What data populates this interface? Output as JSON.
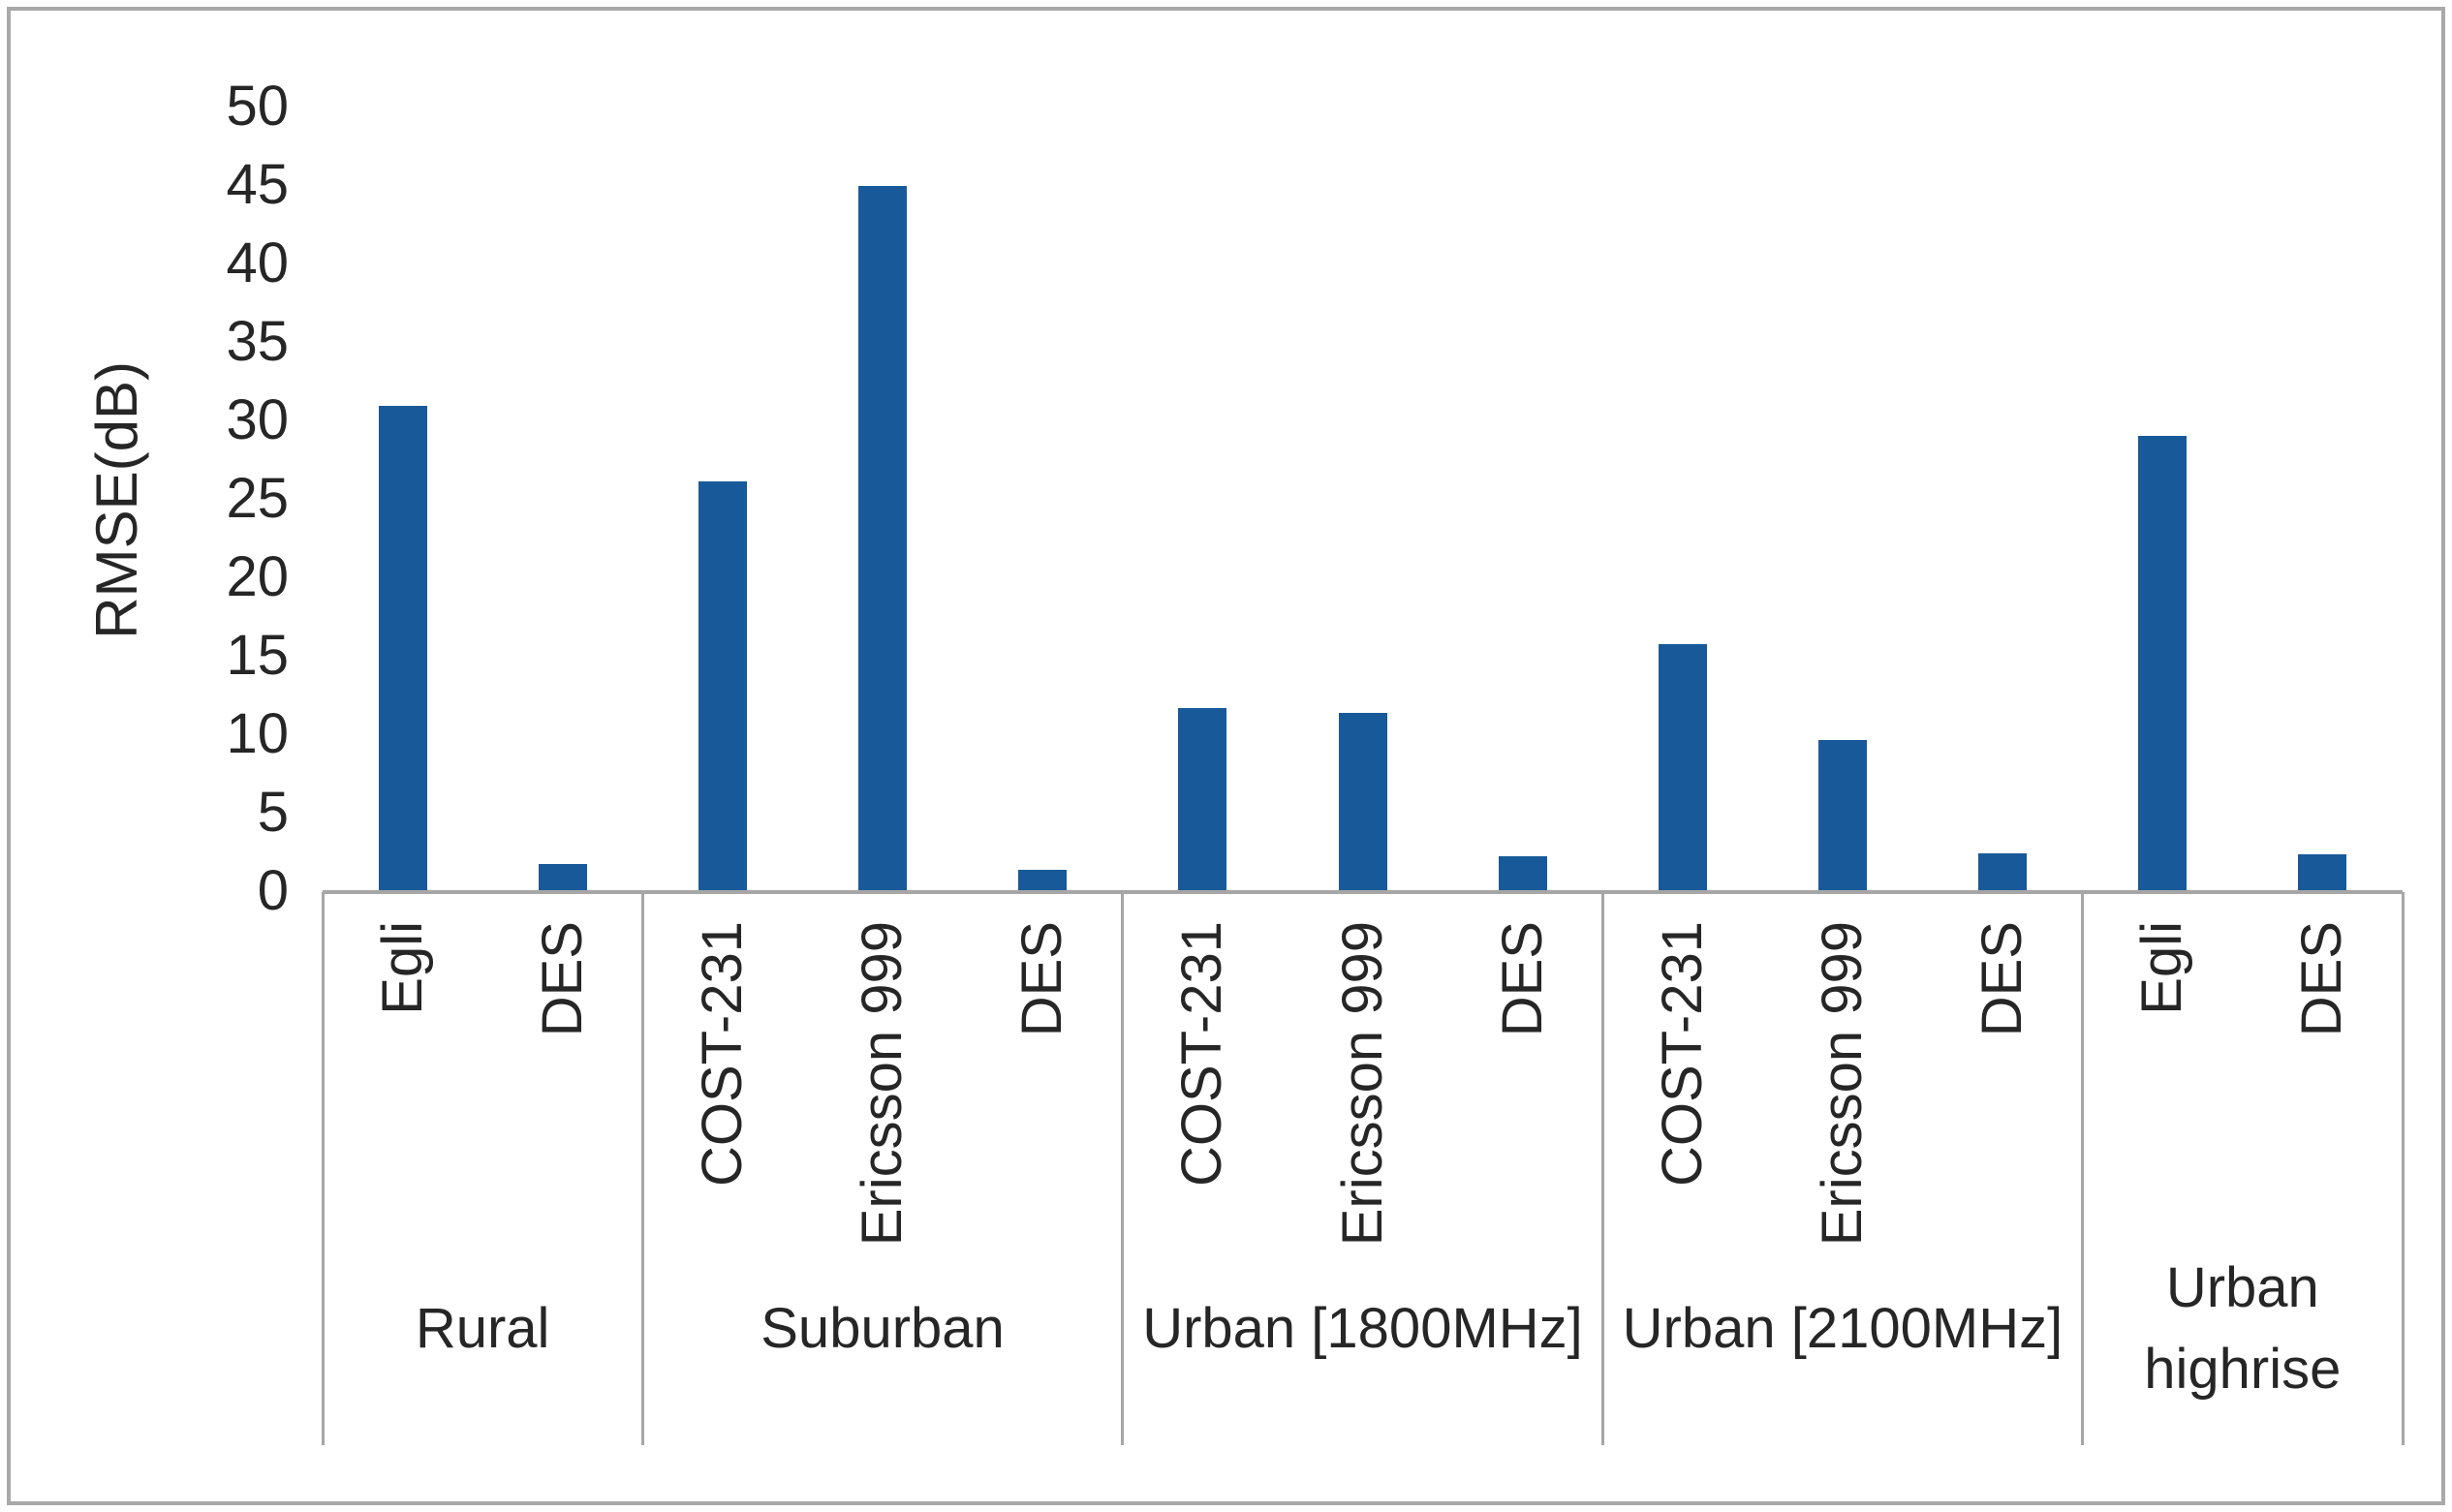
{
  "figure": {
    "background": "#FFFFFF",
    "border_color": "#A9A9A9"
  },
  "chart_data": {
    "type": "bar",
    "title": "",
    "xlabel": "",
    "ylabel": "RMSE(dB)",
    "ylim": [
      0,
      50
    ],
    "ytick_step": 5,
    "ytick_labels": [
      "0",
      "5",
      "10",
      "15",
      "20",
      "25",
      "30",
      "35",
      "40",
      "45",
      "50"
    ],
    "grid": false,
    "legend": "none",
    "bar_color": "#185A99",
    "axis_line_color": "#A6A6A6",
    "text_color": "#262626",
    "groups": [
      {
        "label": "Rural",
        "bars": [
          {
            "model": "Egli",
            "value": 31
          },
          {
            "model": "DES",
            "value": 1.8
          }
        ]
      },
      {
        "label": "Suburban",
        "bars": [
          {
            "model": "COST-231",
            "value": 26.2
          },
          {
            "model": "Ericsson 999",
            "value": 45
          },
          {
            "model": "DES",
            "value": 1.4
          }
        ]
      },
      {
        "label": "Urban [1800MHz]",
        "bars": [
          {
            "model": "COST-231",
            "value": 11.7
          },
          {
            "model": "Ericsson 999",
            "value": 11.4
          },
          {
            "model": "DES",
            "value": 2.3
          }
        ]
      },
      {
        "label": "Urban [2100MHz]",
        "bars": [
          {
            "model": "COST-231",
            "value": 15.8
          },
          {
            "model": "Ericsson 999",
            "value": 9.7
          },
          {
            "model": "DES",
            "value": 2.5
          }
        ]
      },
      {
        "label": "Urban highrise",
        "bars": [
          {
            "model": "Egli",
            "value": 29.1
          },
          {
            "model": "DES",
            "value": 2.4
          }
        ]
      }
    ],
    "categories": [
      "Egli",
      "DES",
      "COST-231",
      "Ericsson 999",
      "DES",
      "COST-231",
      "Ericsson 999",
      "DES",
      "COST-231",
      "Ericsson 999",
      "DES",
      "Egli",
      "DES"
    ],
    "values": [
      31,
      1.8,
      26.2,
      45,
      1.4,
      11.7,
      11.4,
      2.3,
      15.8,
      9.7,
      2.5,
      29.1,
      2.4
    ]
  }
}
